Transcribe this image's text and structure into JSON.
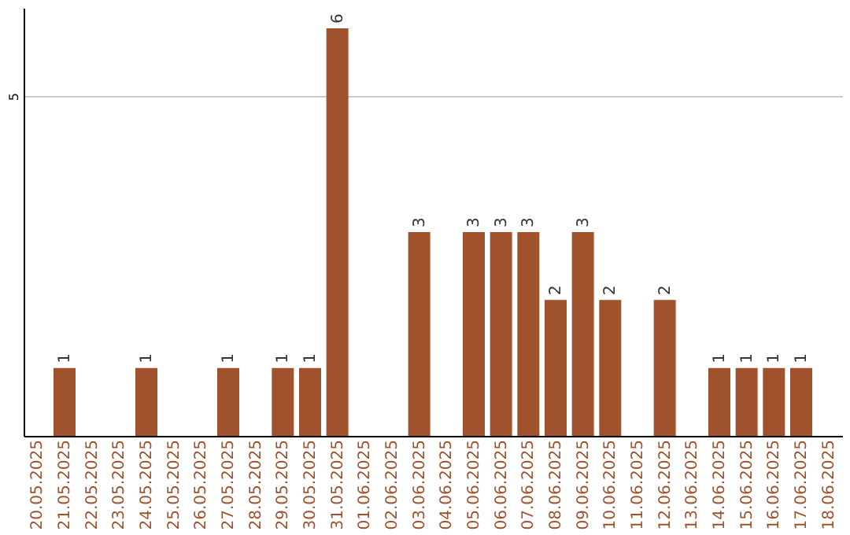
{
  "chart_data": {
    "type": "bar",
    "categories": [
      "20.05.2025",
      "21.05.2025",
      "22.05.2025",
      "23.05.2025",
      "24.05.2025",
      "25.05.2025",
      "26.05.2025",
      "27.05.2025",
      "28.05.2025",
      "29.05.2025",
      "30.05.2025",
      "31.05.2025",
      "01.06.2025",
      "02.06.2025",
      "03.06.2025",
      "04.06.2025",
      "05.06.2025",
      "06.06.2025",
      "07.06.2025",
      "08.06.2025",
      "09.06.2025",
      "10.06.2025",
      "11.06.2025",
      "12.06.2025",
      "13.06.2025",
      "14.06.2025",
      "15.06.2025",
      "16.06.2025",
      "17.06.2025",
      "18.06.2025"
    ],
    "values": [
      0,
      1,
      0,
      0,
      1,
      0,
      0,
      1,
      0,
      1,
      1,
      6,
      0,
      0,
      3,
      0,
      3,
      3,
      3,
      2,
      3,
      2,
      0,
      2,
      0,
      1,
      1,
      1,
      1,
      0
    ],
    "value_labels": [
      null,
      "1",
      null,
      null,
      "1",
      null,
      null,
      "1",
      null,
      "1",
      "1",
      "6",
      null,
      null,
      "3",
      null,
      "3",
      "3",
      "3",
      "2",
      "3",
      "2",
      null,
      "2",
      null,
      "1",
      "1",
      "1",
      "1",
      null
    ],
    "color": "#a0522d",
    "ylim": [
      0,
      6.3
    ],
    "yticks": [
      5
    ],
    "grid": "y"
  }
}
